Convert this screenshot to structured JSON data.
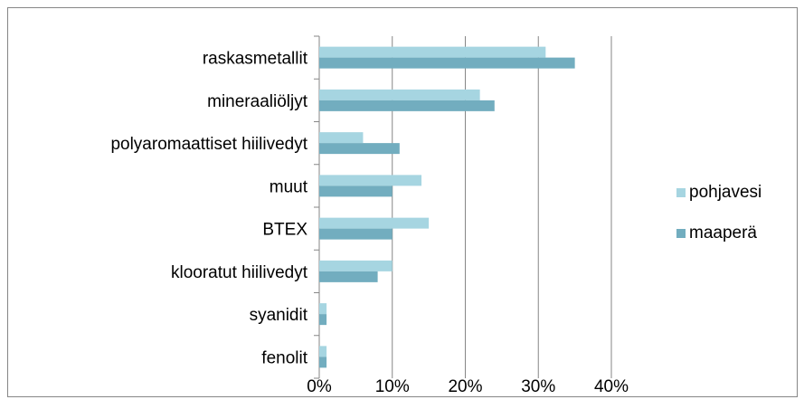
{
  "chart_data": {
    "type": "bar",
    "orientation": "horizontal",
    "categories": [
      "raskasmetallit",
      "mineraaliöljyt",
      "polyaromaattiset hiilivedyt",
      "muut",
      "BTEX",
      "klooratut hiilivedyt",
      "syanidit",
      "fenolit"
    ],
    "series": [
      {
        "name": "pohjavesi",
        "color": "#a6d5e1",
        "values": [
          31,
          22,
          6,
          14,
          15,
          10,
          1,
          1
        ]
      },
      {
        "name": "maaperä",
        "color": "#72adbf",
        "values": [
          35,
          24,
          11,
          10,
          10,
          8,
          1,
          1
        ]
      }
    ],
    "xlim": [
      0,
      40
    ],
    "xticks": [
      {
        "value": 0,
        "label": "0%"
      },
      {
        "value": 10,
        "label": "10%"
      },
      {
        "value": 20,
        "label": "20%"
      },
      {
        "value": 30,
        "label": "30%"
      },
      {
        "value": 40,
        "label": "40%"
      }
    ],
    "grid": true,
    "legend": "right"
  }
}
